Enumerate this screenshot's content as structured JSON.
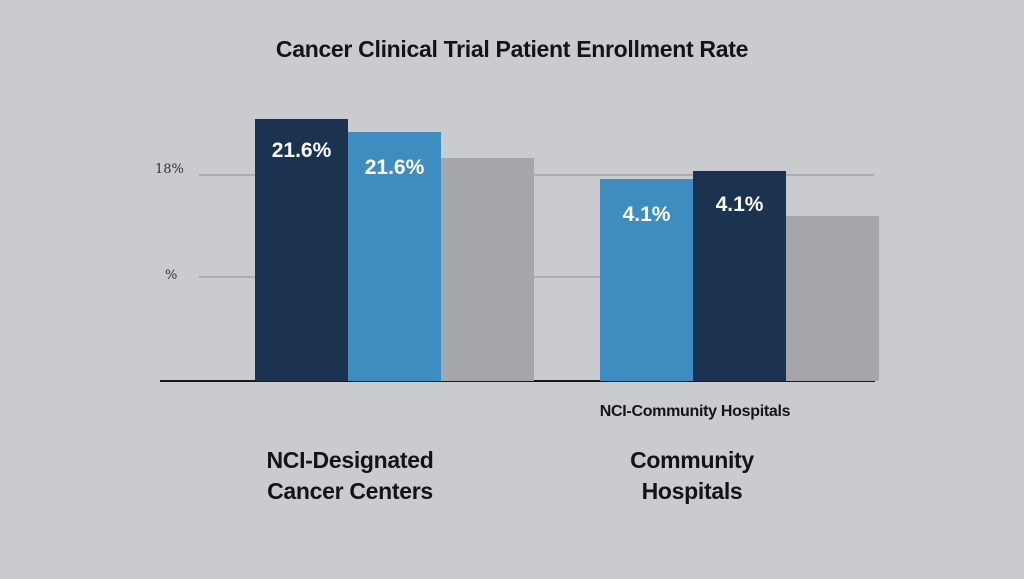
{
  "chart_data": {
    "type": "bar",
    "title": "Cancer Clinical Trial Patient Enrollment Rate",
    "y_ticks": [
      {
        "label": "18%"
      },
      {
        "label": "%"
      }
    ],
    "groups": [
      {
        "name": "NCI-Designated Cancer Centers",
        "label_lines": "NCI-Designated\nCancer Centers",
        "sublabel": "",
        "bars": [
          {
            "value": 21.6,
            "label": "21.6%",
            "color": "#1b3350"
          },
          {
            "value": 21.6,
            "label": "21.6%",
            "color": "#3f8cc0",
            "relative_height": 0.95
          },
          {
            "value": null,
            "label": "",
            "color": "#a5a6aa",
            "relative_height": 0.85
          }
        ]
      },
      {
        "name": "Community Hospitals",
        "label_lines": "Community\nHospitals",
        "sublabel": "NCI-Community Hospitals",
        "bars": [
          {
            "value": 4.1,
            "label": "4.1%",
            "color": "#3f8cc0",
            "relative_height": 0.77
          },
          {
            "value": 4.1,
            "label": "4.1%",
            "color": "#1b3350",
            "relative_height": 0.8
          },
          {
            "value": null,
            "label": "",
            "color": "#a5a6aa",
            "relative_height": 0.63
          }
        ]
      }
    ],
    "legend": "none",
    "grid": true
  }
}
